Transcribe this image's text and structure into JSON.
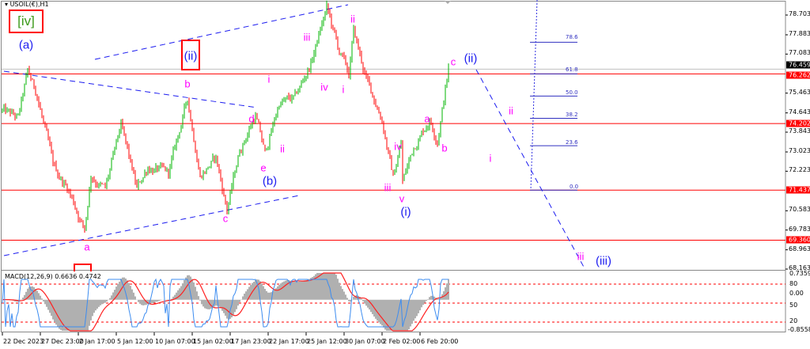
{
  "chart_data": {
    "type": "candlestick",
    "symbol": "USOIL(€),H1",
    "price_axis_ticks": [
      "78.703",
      "77.883",
      "77.083",
      "75.463",
      "74.643",
      "73.843",
      "73.023",
      "72.223",
      "70.583",
      "69.783",
      "68.963",
      "68.163"
    ],
    "ylim": [
      68.163,
      78.703
    ],
    "current_price": "76.459",
    "horizontal_levels": [
      "76.262",
      "74.202",
      "71.437",
      "69.360"
    ],
    "time_axis_ticks": [
      "22 Dec 2023",
      "27 Dec 23:00",
      "2 Jan 17:00",
      "5 Jan 12:00",
      "10 Jan 07:00",
      "15 Jan 02:00",
      "17 Jan 23:00",
      "22 Jan 17:00",
      "25 Jan 12:00",
      "30 Jan 07:00",
      "2 Feb 02:00",
      "6 Feb 20:00"
    ],
    "bars_per_tick": 24,
    "price_path_waypoints": [
      [
        0,
        74.73
      ],
      [
        10,
        74.4
      ],
      [
        16,
        76.3
      ],
      [
        22,
        75.39
      ],
      [
        32,
        72.43
      ],
      [
        42,
        71.45
      ],
      [
        52,
        69.8
      ],
      [
        56,
        72.1
      ],
      [
        65,
        71.45
      ],
      [
        75,
        74.07
      ],
      [
        85,
        71.45
      ],
      [
        92,
        72.43
      ],
      [
        105,
        72.1
      ],
      [
        117,
        75.22
      ],
      [
        125,
        72.1
      ],
      [
        135,
        72.76
      ],
      [
        142,
        70.63
      ],
      [
        150,
        73.09
      ],
      [
        160,
        74.57
      ],
      [
        166,
        72.93
      ],
      [
        175,
        75.06
      ],
      [
        185,
        75.22
      ],
      [
        195,
        76.7
      ],
      [
        205,
        79.0
      ],
      [
        212,
        77.36
      ],
      [
        219,
        76.21
      ],
      [
        222,
        78.01
      ],
      [
        230,
        76.04
      ],
      [
        240,
        74.4
      ],
      [
        247,
        71.94
      ],
      [
        252,
        73.42
      ],
      [
        253,
        71.78
      ],
      [
        260,
        73.25
      ],
      [
        270,
        74.4
      ],
      [
        275,
        73.58
      ],
      [
        282,
        76.47
      ]
    ],
    "fibonacci": {
      "low": 71.437,
      "high": 79.244,
      "levels": [
        "78.6",
        "61.8",
        "50.0",
        "38.2",
        "23.6",
        "0.0"
      ]
    },
    "indicator": {
      "title": "MACD(12,26,9) 0.6636 0.4742",
      "axis_labels": [
        "0.7359",
        "80",
        "0.00",
        "50",
        "20",
        "-0.8558"
      ],
      "levels": [
        80,
        50,
        20
      ],
      "range": [
        -0.8558,
        0.7359
      ]
    },
    "wave_labels": [
      "[iv]",
      "(a)",
      "(ii)",
      "b",
      "i",
      "d",
      "e",
      "(b)",
      "c",
      "a",
      "iii",
      "ii",
      "iv",
      "i",
      "ii",
      "iv",
      "iii",
      "v",
      "(i)",
      "a",
      "b",
      "c",
      "(ii)",
      "ii",
      "i",
      "iii",
      "(iii)"
    ],
    "colors": {
      "up": "#00b400",
      "down": "#ff0000",
      "level": "#ff0000",
      "wave_minor": "#ff00ff",
      "wave_major": "#1c1cf0",
      "box": "#ff0000",
      "trend": "#1c1cf0"
    }
  }
}
